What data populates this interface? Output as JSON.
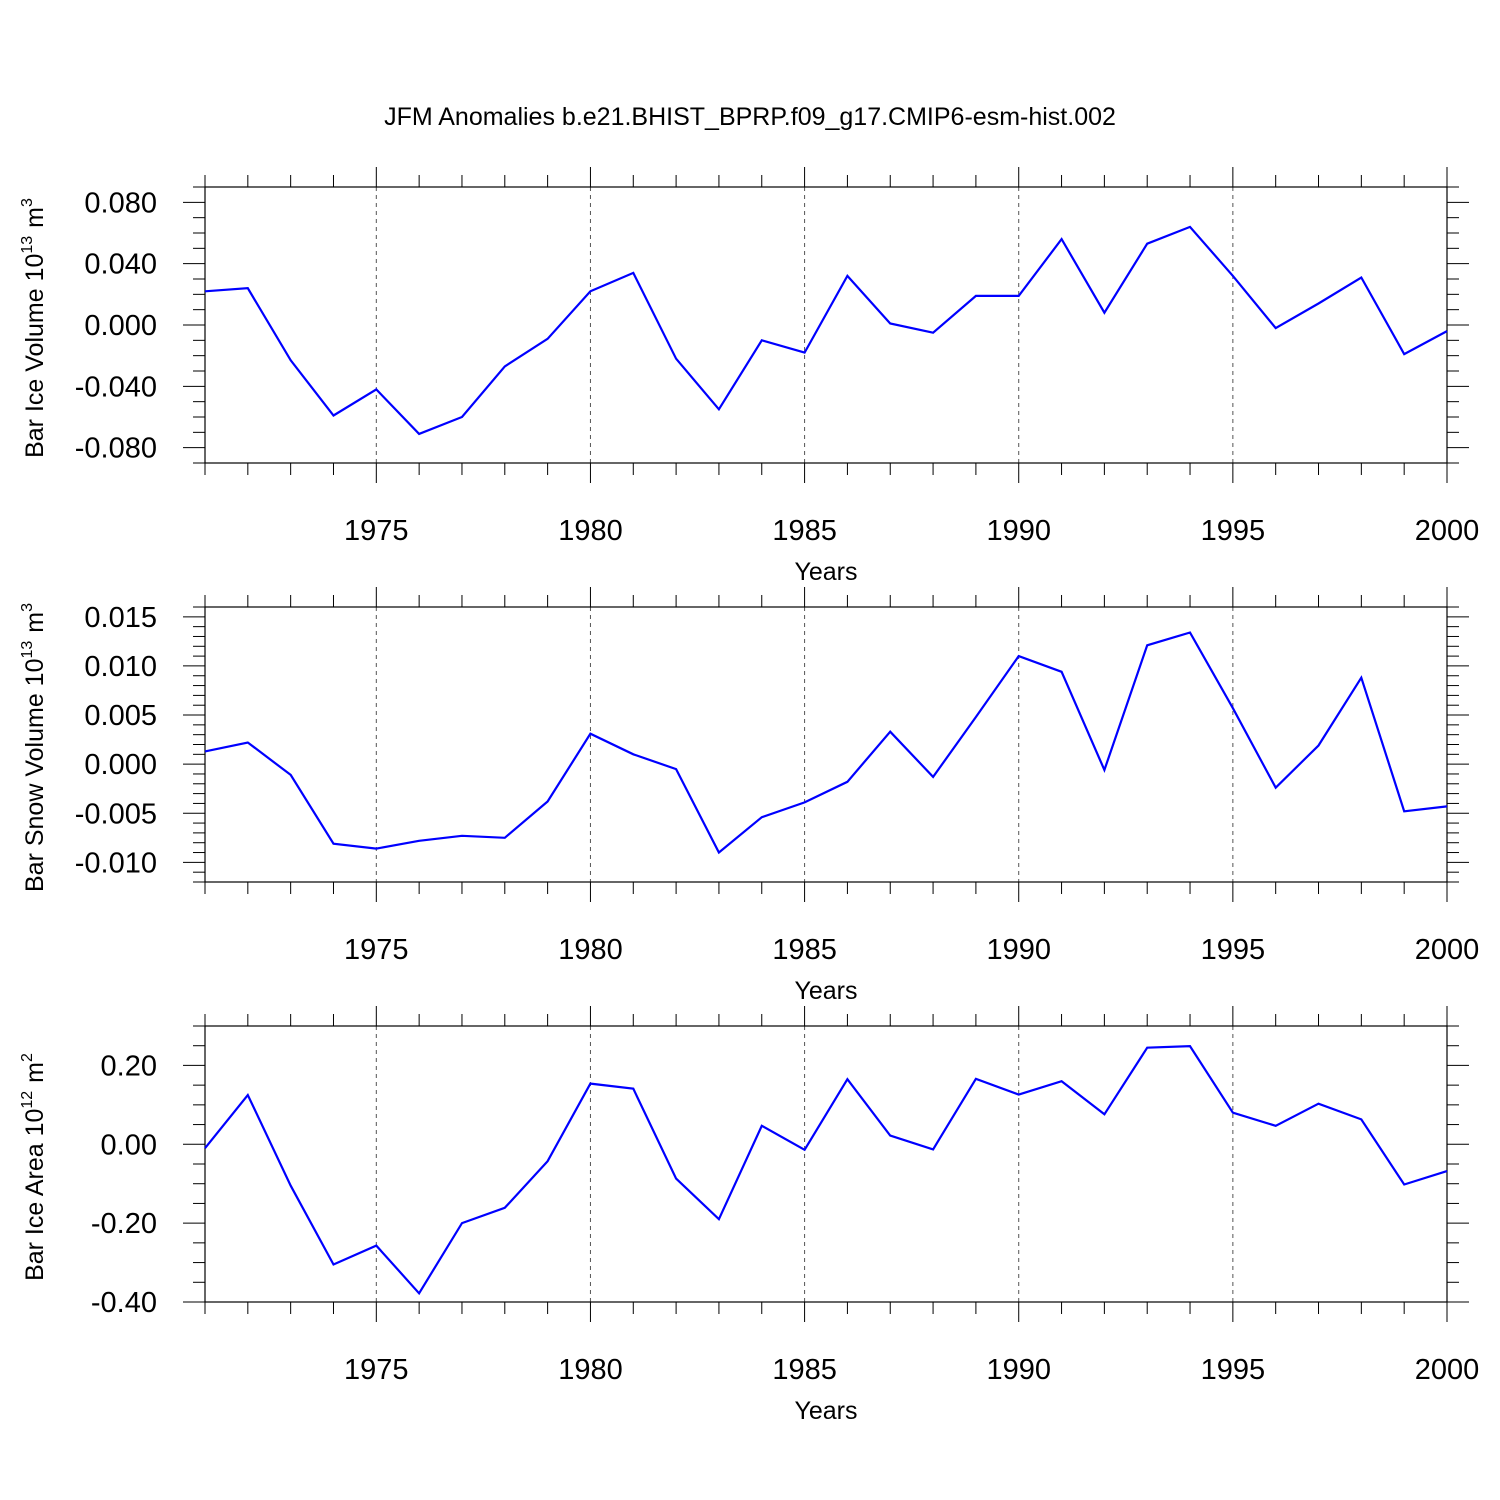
{
  "title": "JFM Anomalies b.e21.BHIST_BPRP.f09_g17.CMIP6-esm-hist.002",
  "colors": {
    "series": "#0000ff",
    "axes": "#000000",
    "grid": "#555555"
  },
  "chart_data": [
    {
      "type": "line",
      "ylabel_main": "Bar Ice Volume 10",
      "ylabel_exp": "13",
      "ylabel_unit": "m",
      "ylabel_unit_exp": "3",
      "xlabel": "Years",
      "xlim": [
        1971,
        2000
      ],
      "ylim": [
        -0.09,
        0.09
      ],
      "x_ticks": [
        1975,
        1980,
        1985,
        1990,
        1995,
        2000
      ],
      "x_tick_labels": [
        "1975",
        "1980",
        "1985",
        "1990",
        "1995",
        "2000"
      ],
      "y_ticks": [
        0.08,
        0.04,
        0.0,
        -0.04,
        -0.08
      ],
      "y_tick_labels": [
        "0.080",
        "0.040",
        "0.000",
        "-0.040",
        "-0.080"
      ],
      "y_minor_step": 0.01,
      "grid": "vertical dashed at major x ticks",
      "x": [
        1971,
        1972,
        1973,
        1974,
        1975,
        1976,
        1977,
        1978,
        1979,
        1980,
        1981,
        1982,
        1983,
        1984,
        1985,
        1986,
        1987,
        1988,
        1989,
        1990,
        1991,
        1992,
        1993,
        1994,
        1995,
        1996,
        1997,
        1998,
        1999,
        2000
      ],
      "values": [
        0.022,
        0.024,
        -0.023,
        -0.059,
        -0.042,
        -0.071,
        -0.06,
        -0.027,
        -0.009,
        0.022,
        0.034,
        -0.022,
        -0.055,
        -0.01,
        -0.018,
        0.032,
        0.001,
        -0.005,
        0.019,
        0.019,
        0.056,
        0.008,
        0.053,
        0.064,
        0.032,
        -0.002,
        0.014,
        0.031,
        -0.019,
        -0.004
      ]
    },
    {
      "type": "line",
      "ylabel_main": "Bar Snow Volume 10",
      "ylabel_exp": "13",
      "ylabel_unit": "m",
      "ylabel_unit_exp": "3",
      "xlabel": "Years",
      "xlim": [
        1971,
        2000
      ],
      "ylim": [
        -0.012,
        0.016
      ],
      "x_ticks": [
        1975,
        1980,
        1985,
        1990,
        1995,
        2000
      ],
      "x_tick_labels": [
        "1975",
        "1980",
        "1985",
        "1990",
        "1995",
        "2000"
      ],
      "y_ticks": [
        0.015,
        0.01,
        0.005,
        0.0,
        -0.005,
        -0.01
      ],
      "y_tick_labels": [
        "0.015",
        "0.010",
        "0.005",
        "0.000",
        "-0.005",
        "-0.010"
      ],
      "y_minor_step": 0.001,
      "grid": "vertical dashed at major x ticks",
      "x": [
        1971,
        1972,
        1973,
        1974,
        1975,
        1976,
        1977,
        1978,
        1979,
        1980,
        1981,
        1982,
        1983,
        1984,
        1985,
        1986,
        1987,
        1988,
        1989,
        1990,
        1991,
        1992,
        1993,
        1994,
        1995,
        1996,
        1997,
        1998,
        1999,
        2000
      ],
      "values": [
        0.0013,
        0.0022,
        -0.0011,
        -0.0081,
        -0.0086,
        -0.0078,
        -0.0073,
        -0.0075,
        -0.0038,
        0.0031,
        0.001,
        -0.0005,
        -0.009,
        -0.0054,
        -0.0039,
        -0.0018,
        0.0033,
        -0.0013,
        0.0048,
        0.011,
        0.0094,
        -0.0006,
        0.0121,
        0.0134,
        0.0057,
        -0.0024,
        0.0019,
        0.0088,
        -0.0048,
        -0.0043
      ]
    },
    {
      "type": "line",
      "ylabel_main": "Bar Ice Area 10",
      "ylabel_exp": "12",
      "ylabel_unit": "m",
      "ylabel_unit_exp": "2",
      "xlabel": "Years",
      "xlim": [
        1971,
        2000
      ],
      "ylim": [
        -0.4,
        0.3
      ],
      "x_ticks": [
        1975,
        1980,
        1985,
        1990,
        1995,
        2000
      ],
      "x_tick_labels": [
        "1975",
        "1980",
        "1985",
        "1990",
        "1995",
        "2000"
      ],
      "y_ticks": [
        0.2,
        0.0,
        -0.2,
        -0.4
      ],
      "y_tick_labels": [
        "0.20",
        "0.00",
        "-0.20",
        "-0.40"
      ],
      "y_minor_step": 0.05,
      "grid": "vertical dashed at major x ticks",
      "x": [
        1971,
        1972,
        1973,
        1974,
        1975,
        1976,
        1977,
        1978,
        1979,
        1980,
        1981,
        1982,
        1983,
        1984,
        1985,
        1986,
        1987,
        1988,
        1989,
        1990,
        1991,
        1992,
        1993,
        1994,
        1995,
        1996,
        1997,
        1998,
        1999,
        2000
      ],
      "values": [
        -0.01,
        0.125,
        -0.105,
        -0.305,
        -0.257,
        -0.378,
        -0.2,
        -0.161,
        -0.043,
        0.154,
        0.141,
        -0.087,
        -0.19,
        0.047,
        -0.014,
        0.165,
        0.022,
        -0.013,
        0.166,
        0.126,
        0.16,
        0.076,
        0.245,
        0.249,
        0.08,
        0.047,
        0.103,
        0.063,
        -0.102,
        -0.068
      ]
    }
  ]
}
